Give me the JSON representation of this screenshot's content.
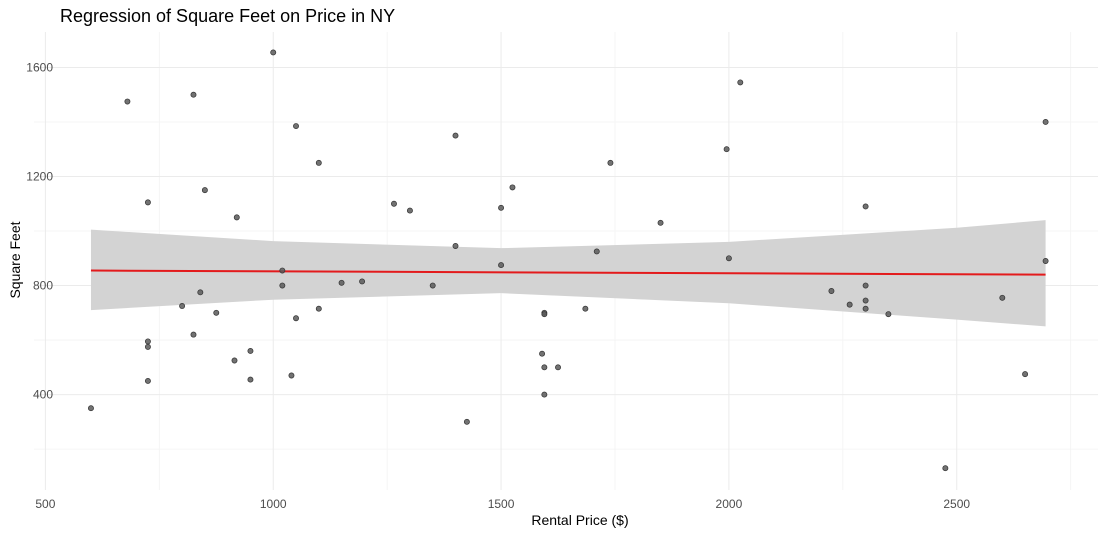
{
  "chart_data": {
    "type": "scatter",
    "title": "Regression of Square Feet on Price in NY",
    "xlabel": "Rental Price ($)",
    "ylabel": "Square Feet",
    "xlim": [
      475,
      2810
    ],
    "ylim": [
      50,
      1730
    ],
    "x_ticks": [
      500,
      1000,
      1500,
      2000,
      2500
    ],
    "y_ticks": [
      400,
      800,
      1200,
      1600
    ],
    "x_tick_labels": [
      "500",
      "1000",
      "1500",
      "2000",
      "2500"
    ],
    "y_tick_labels": [
      "400",
      "800",
      "1200",
      "1600"
    ],
    "grid": true,
    "colors": {
      "points": "#595959",
      "fit_line": "#e31a1c",
      "confidence_band": "#d3d3d3"
    },
    "points": [
      {
        "x": 600,
        "y": 350
      },
      {
        "x": 680,
        "y": 1475
      },
      {
        "x": 725,
        "y": 1105
      },
      {
        "x": 725,
        "y": 595
      },
      {
        "x": 725,
        "y": 575
      },
      {
        "x": 725,
        "y": 450
      },
      {
        "x": 800,
        "y": 725
      },
      {
        "x": 825,
        "y": 1500
      },
      {
        "x": 825,
        "y": 620
      },
      {
        "x": 840,
        "y": 775
      },
      {
        "x": 850,
        "y": 1150
      },
      {
        "x": 875,
        "y": 700
      },
      {
        "x": 915,
        "y": 525
      },
      {
        "x": 920,
        "y": 1050
      },
      {
        "x": 950,
        "y": 560
      },
      {
        "x": 950,
        "y": 455
      },
      {
        "x": 1000,
        "y": 1655
      },
      {
        "x": 1020,
        "y": 855
      },
      {
        "x": 1020,
        "y": 800
      },
      {
        "x": 1040,
        "y": 470
      },
      {
        "x": 1050,
        "y": 1385
      },
      {
        "x": 1050,
        "y": 680
      },
      {
        "x": 1100,
        "y": 1250
      },
      {
        "x": 1100,
        "y": 715
      },
      {
        "x": 1150,
        "y": 810
      },
      {
        "x": 1195,
        "y": 815
      },
      {
        "x": 1265,
        "y": 1100
      },
      {
        "x": 1300,
        "y": 1075
      },
      {
        "x": 1350,
        "y": 800
      },
      {
        "x": 1400,
        "y": 1350
      },
      {
        "x": 1400,
        "y": 945
      },
      {
        "x": 1425,
        "y": 300
      },
      {
        "x": 1500,
        "y": 1085
      },
      {
        "x": 1500,
        "y": 875
      },
      {
        "x": 1525,
        "y": 1160
      },
      {
        "x": 1590,
        "y": 550
      },
      {
        "x": 1595,
        "y": 700
      },
      {
        "x": 1595,
        "y": 695
      },
      {
        "x": 1595,
        "y": 500
      },
      {
        "x": 1595,
        "y": 400
      },
      {
        "x": 1625,
        "y": 500
      },
      {
        "x": 1685,
        "y": 715
      },
      {
        "x": 1710,
        "y": 925
      },
      {
        "x": 1740,
        "y": 1250
      },
      {
        "x": 1850,
        "y": 1030
      },
      {
        "x": 1995,
        "y": 1300
      },
      {
        "x": 2000,
        "y": 900
      },
      {
        "x": 2025,
        "y": 1545
      },
      {
        "x": 2225,
        "y": 780
      },
      {
        "x": 2265,
        "y": 730
      },
      {
        "x": 2300,
        "y": 1090
      },
      {
        "x": 2300,
        "y": 800
      },
      {
        "x": 2300,
        "y": 745
      },
      {
        "x": 2300,
        "y": 715
      },
      {
        "x": 2350,
        "y": 695
      },
      {
        "x": 2475,
        "y": 130
      },
      {
        "x": 2600,
        "y": 755
      },
      {
        "x": 2650,
        "y": 475
      },
      {
        "x": 2695,
        "y": 1400
      },
      {
        "x": 2695,
        "y": 890
      }
    ],
    "fit_line": {
      "x": [
        600,
        2695
      ],
      "y": [
        855,
        840
      ]
    },
    "confidence_band": {
      "x": [
        600,
        1000,
        1500,
        2000,
        2500,
        2695
      ],
      "upper": [
        1005,
        963,
        937,
        960,
        1012,
        1040
      ],
      "lower": [
        710,
        748,
        772,
        735,
        675,
        650
      ]
    }
  }
}
